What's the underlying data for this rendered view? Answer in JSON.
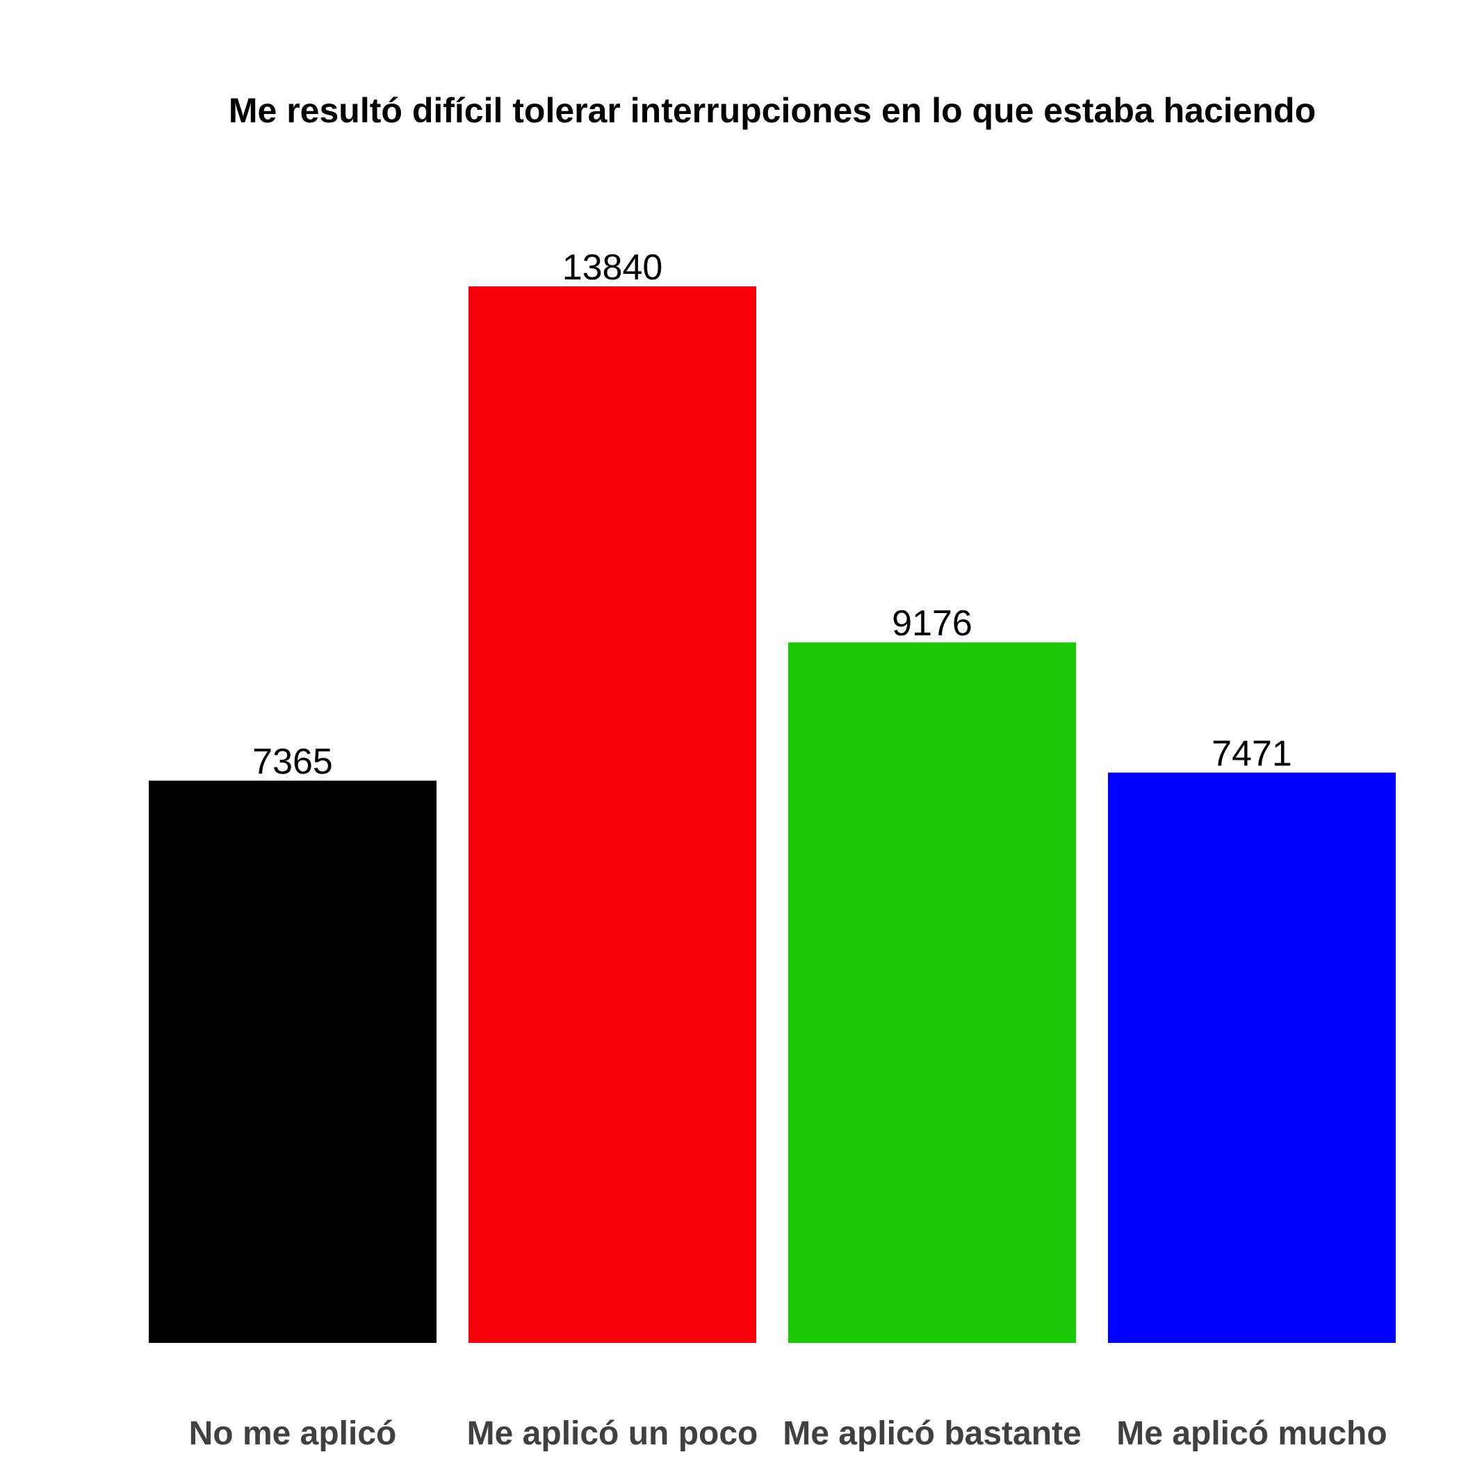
{
  "chart_data": {
    "type": "bar",
    "title": "Me resultó difícil tolerar interrupciones en lo que estaba haciendo",
    "xlabel": "",
    "ylabel": "",
    "categories": [
      "No me aplicó",
      "Me aplicó un poco",
      "Me aplicó bastante",
      "Me aplicó mucho"
    ],
    "values": [
      7365,
      13840,
      9176,
      7471
    ],
    "colors": [
      "#000000",
      "#F8000A",
      "#1BC805",
      "#0000FF"
    ],
    "ylim": [
      0,
      13840
    ],
    "grid": false,
    "legend": "none",
    "data_labels": true
  }
}
